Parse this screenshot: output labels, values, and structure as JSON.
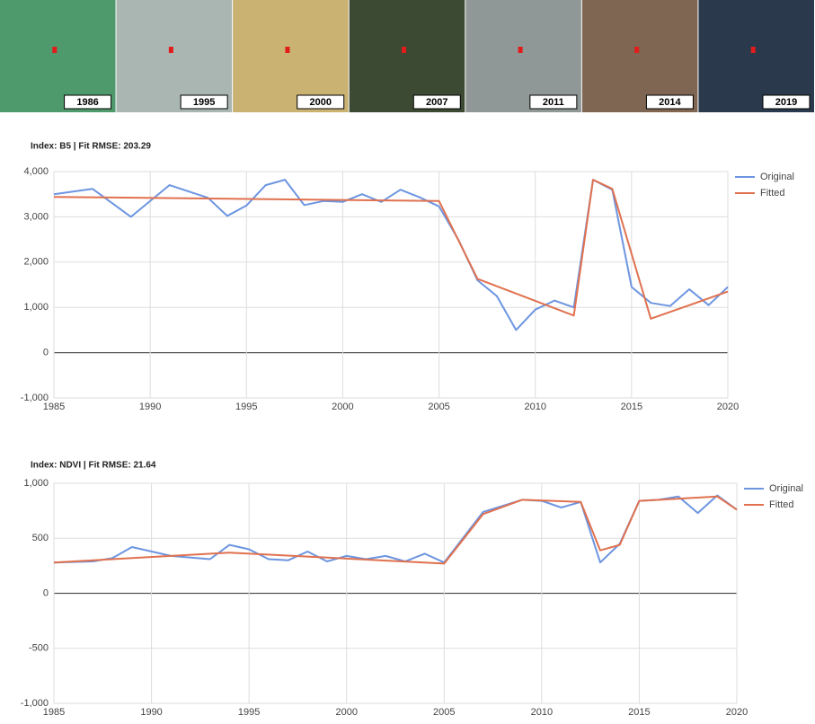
{
  "thumbnails": {
    "labels": [
      "1986",
      "1995",
      "2000",
      "2007",
      "2011",
      "2014",
      "2019"
    ],
    "colors": [
      "#4f9a6c",
      "#a9b6b2",
      "#c9b272",
      "#3d4a33",
      "#8f9896",
      "#7f6652",
      "#2a3a4c"
    ]
  },
  "chart_data": [
    {
      "type": "line",
      "title": "Index: B5 | Fit RMSE: 203.29",
      "xlim": [
        1985,
        2020
      ],
      "xticks": [
        1985,
        1990,
        1995,
        2000,
        2005,
        2010,
        2015,
        2020
      ],
      "ylim": [
        -1000,
        4000
      ],
      "yticks": [
        {
          "value": -1000,
          "label": "-1,000"
        },
        0,
        {
          "value": 1000,
          "label": "1,000"
        },
        {
          "value": 2000,
          "label": "2,000"
        },
        {
          "value": 3000,
          "label": "3,000"
        },
        {
          "value": 4000,
          "label": "4,000"
        }
      ],
      "grid": true,
      "series": [
        {
          "name": "Original",
          "color": "#6d95e0",
          "x": [
            1985,
            1987,
            1989,
            1991,
            1993,
            1994,
            1995,
            1996,
            1997,
            1998,
            1999,
            2000,
            2001,
            2002,
            2003,
            2004,
            2005,
            2006,
            2007,
            2008,
            2009,
            2010,
            2011,
            2012,
            2013,
            2014,
            2015,
            2016,
            2017,
            2018,
            2019,
            2020
          ],
          "values": [
            3500,
            3620,
            3000,
            3700,
            3420,
            3020,
            3250,
            3700,
            3820,
            3260,
            3350,
            3330,
            3500,
            3330,
            3600,
            3430,
            3230,
            2500,
            1600,
            1250,
            500,
            950,
            1150,
            1000,
            3820,
            3600,
            1450,
            1100,
            1030,
            1400,
            1050,
            1450
          ]
        },
        {
          "name": "Fitted",
          "color": "#e0714f",
          "x": [
            1985,
            2005,
            2007,
            2012,
            2013,
            2014,
            2016,
            2020
          ],
          "values": [
            3440,
            3350,
            1630,
            820,
            3820,
            3620,
            750,
            1350
          ]
        }
      ]
    },
    {
      "type": "line",
      "title": "Index: NDVI | Fit RMSE: 21.64",
      "xlim": [
        1985,
        2020
      ],
      "xticks": [
        1985,
        1990,
        1995,
        2000,
        2005,
        2010,
        2015,
        2020
      ],
      "ylim": [
        -1000,
        1000
      ],
      "yticks": [
        {
          "value": -1000,
          "label": "-1,000"
        },
        -500,
        0,
        500,
        {
          "value": 1000,
          "label": "1,000"
        }
      ],
      "grid": true,
      "series": [
        {
          "name": "Original",
          "color": "#6d95e0",
          "x": [
            1985,
            1987,
            1988,
            1989,
            1991,
            1993,
            1994,
            1995,
            1996,
            1997,
            1998,
            1999,
            2000,
            2001,
            2002,
            2003,
            2004,
            2005,
            2007,
            2009,
            2010,
            2011,
            2012,
            2013,
            2014,
            2015,
            2016,
            2017,
            2018,
            2019,
            2020
          ],
          "values": [
            280,
            290,
            320,
            420,
            340,
            310,
            440,
            400,
            310,
            300,
            380,
            290,
            340,
            310,
            340,
            290,
            360,
            280,
            740,
            850,
            840,
            780,
            830,
            280,
            450,
            840,
            850,
            880,
            730,
            890,
            760
          ]
        },
        {
          "name": "Fitted",
          "color": "#e0714f",
          "x": [
            1985,
            1994,
            2005,
            2007,
            2009,
            2012,
            2013,
            2014,
            2015,
            2019,
            2020
          ],
          "values": [
            280,
            370,
            270,
            720,
            850,
            830,
            390,
            440,
            840,
            880,
            760
          ]
        }
      ]
    }
  ]
}
